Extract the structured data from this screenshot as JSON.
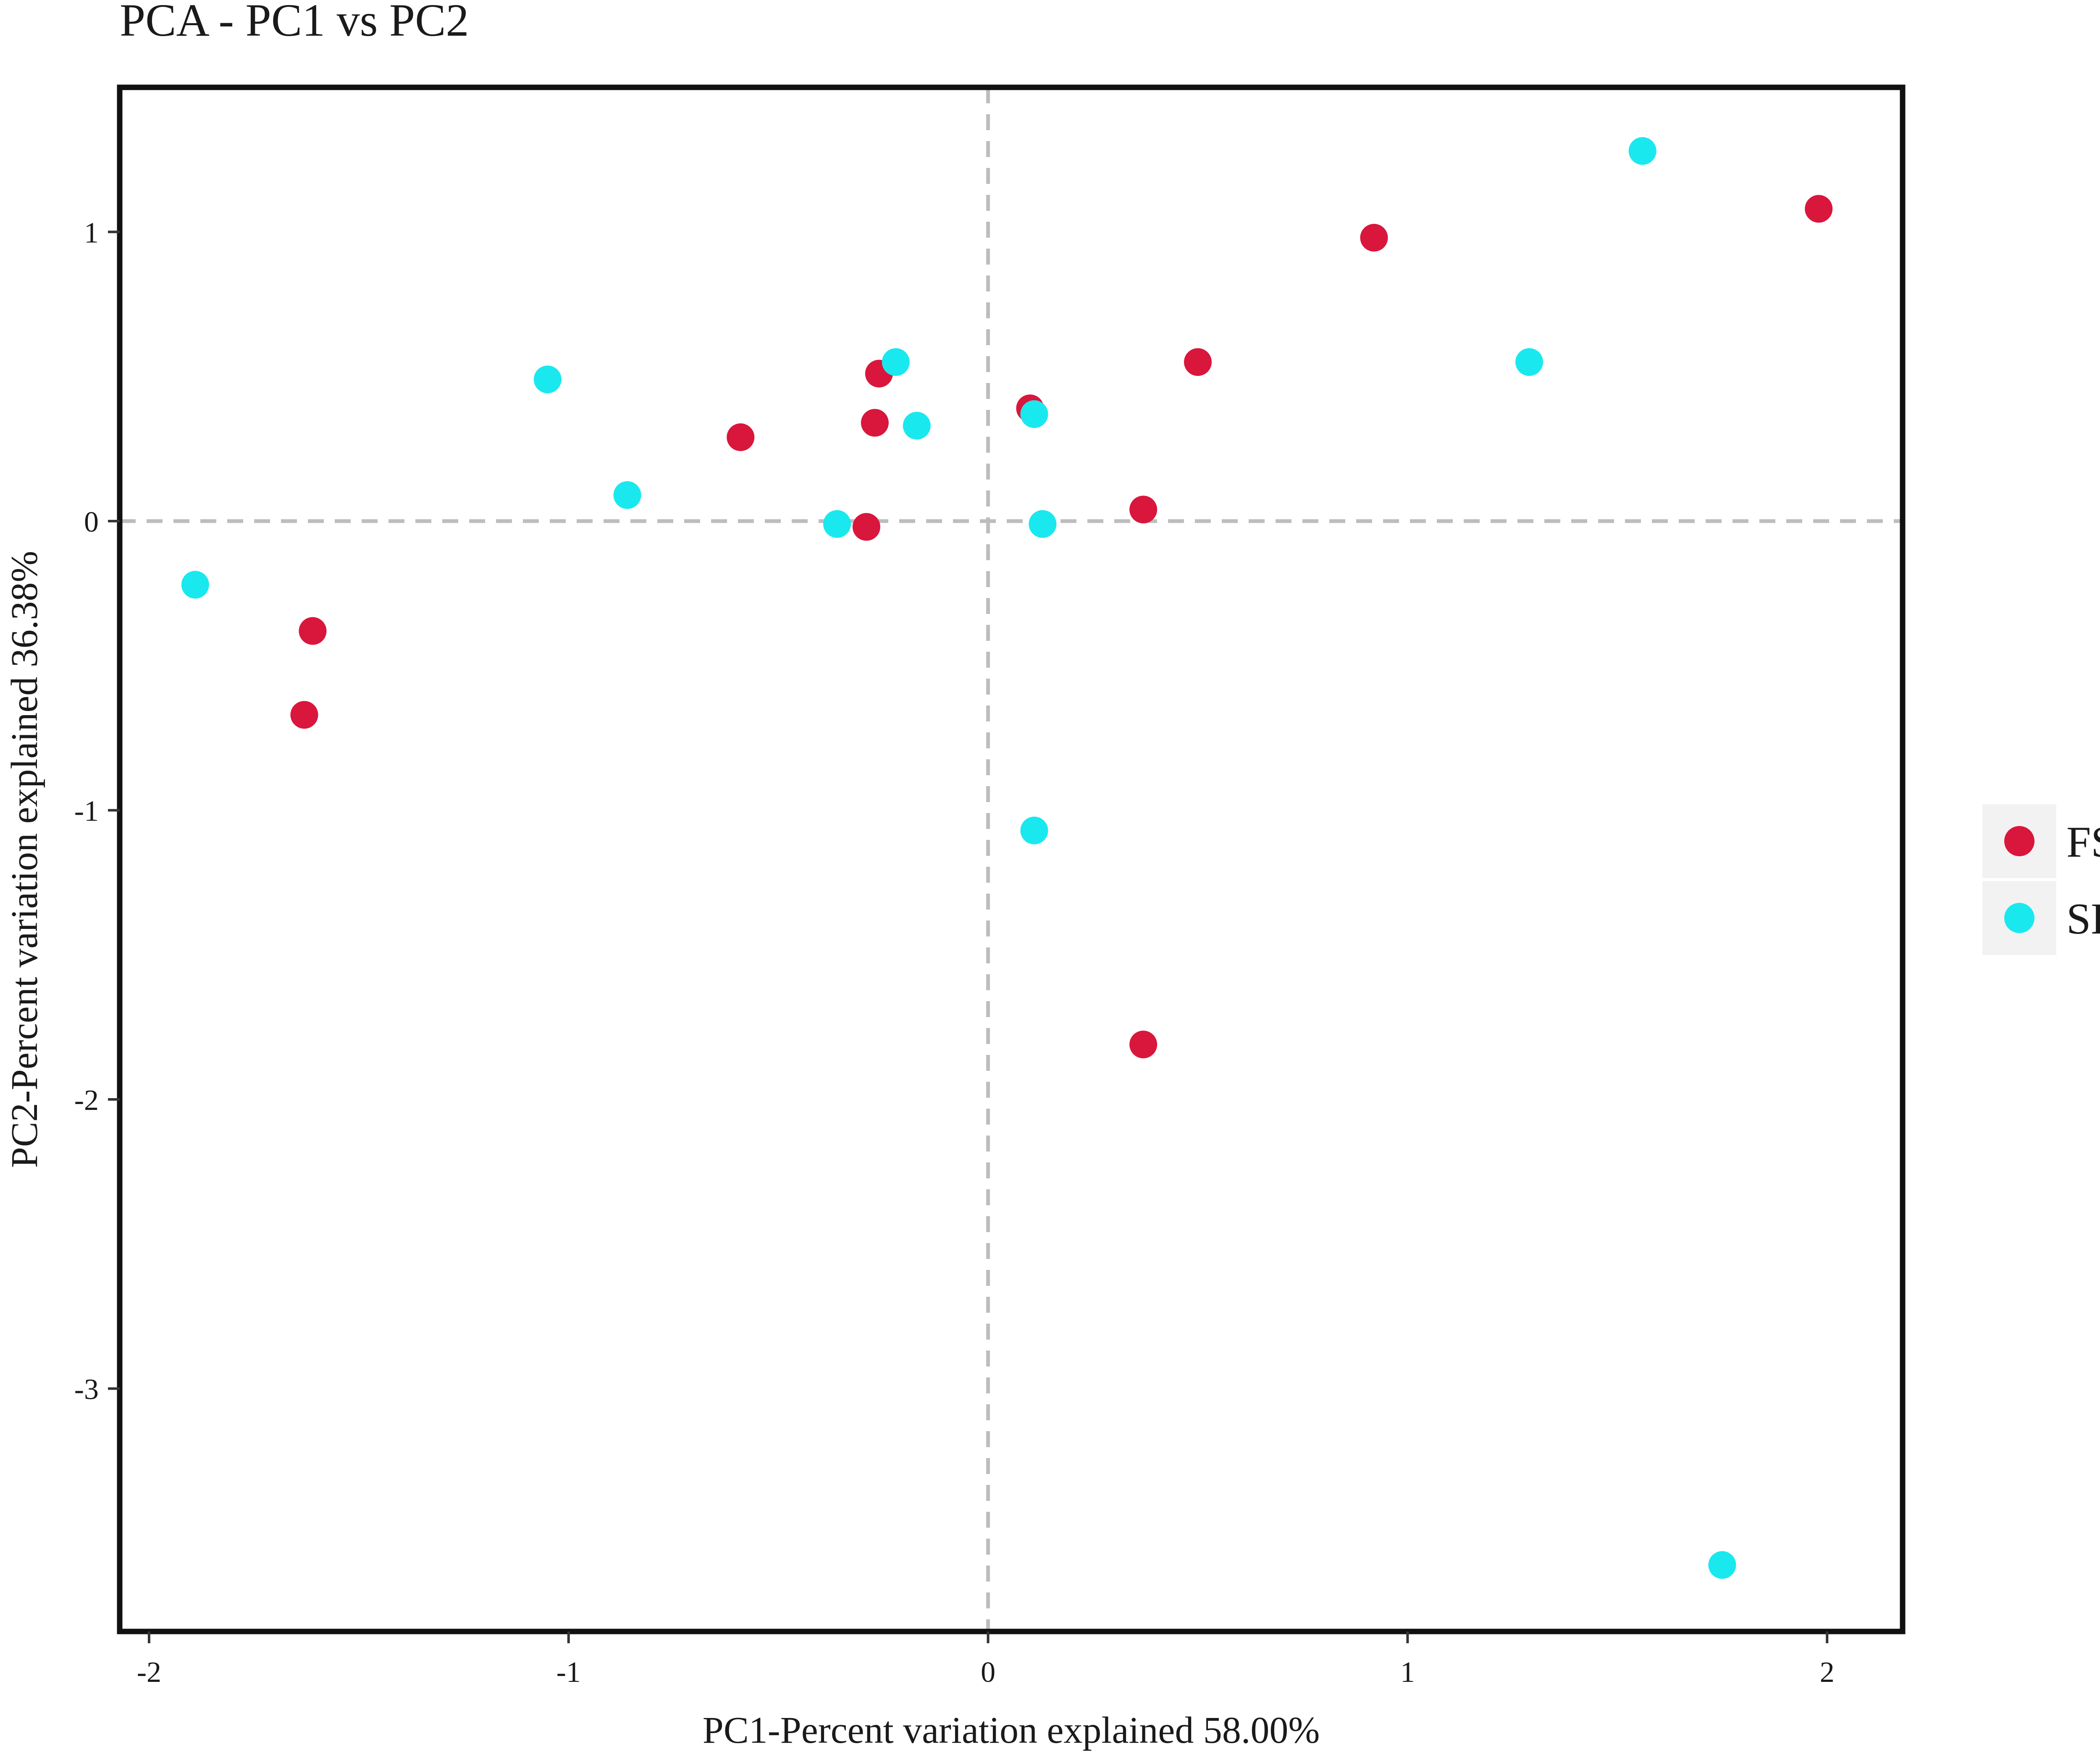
{
  "chart_data": {
    "type": "scatter",
    "title": "PCA - PC1 vs PC2",
    "xlabel": "PC1-Percent variation explained 58.00%",
    "ylabel": "PC2-Percent variation explained 36.38%",
    "xlim": [
      -2.07,
      2.18
    ],
    "ylim": [
      -3.84,
      1.5
    ],
    "xticks": [
      -2,
      -1,
      0,
      1,
      2
    ],
    "xtick_labels": [
      "-2",
      "-1",
      "0",
      "1",
      "2"
    ],
    "yticks": [
      -3,
      -2,
      -1,
      0,
      1
    ],
    "ytick_labels": [
      "-3",
      "-2",
      "-1",
      "0",
      "1"
    ],
    "grid": false,
    "reference_lines": {
      "x": 0,
      "y": 0,
      "style": "dashed",
      "color": "#bdbdbd"
    },
    "legend_position": "right",
    "series": [
      {
        "name": "FSBM",
        "color": "#d9163c",
        "points": [
          [
            1.98,
            1.08
          ],
          [
            0.92,
            0.98
          ],
          [
            0.5,
            0.55
          ],
          [
            -0.26,
            0.51
          ],
          [
            0.1,
            0.39
          ],
          [
            -0.27,
            0.34
          ],
          [
            -0.59,
            0.29
          ],
          [
            0.37,
            0.04
          ],
          [
            -0.29,
            -0.02
          ],
          [
            -1.61,
            -0.38
          ],
          [
            -1.63,
            -0.67
          ],
          [
            0.37,
            -1.81
          ]
        ]
      },
      {
        "name": "SBM",
        "color": "#1ae8ef",
        "points": [
          [
            1.56,
            1.28
          ],
          [
            1.29,
            0.55
          ],
          [
            -0.22,
            0.55
          ],
          [
            -1.05,
            0.49
          ],
          [
            0.11,
            0.37
          ],
          [
            -0.17,
            0.33
          ],
          [
            -0.86,
            0.09
          ],
          [
            -0.36,
            -0.01
          ],
          [
            0.13,
            -0.01
          ],
          [
            -1.89,
            -0.22
          ],
          [
            0.11,
            -1.07
          ],
          [
            1.75,
            -3.61
          ]
        ]
      }
    ]
  }
}
